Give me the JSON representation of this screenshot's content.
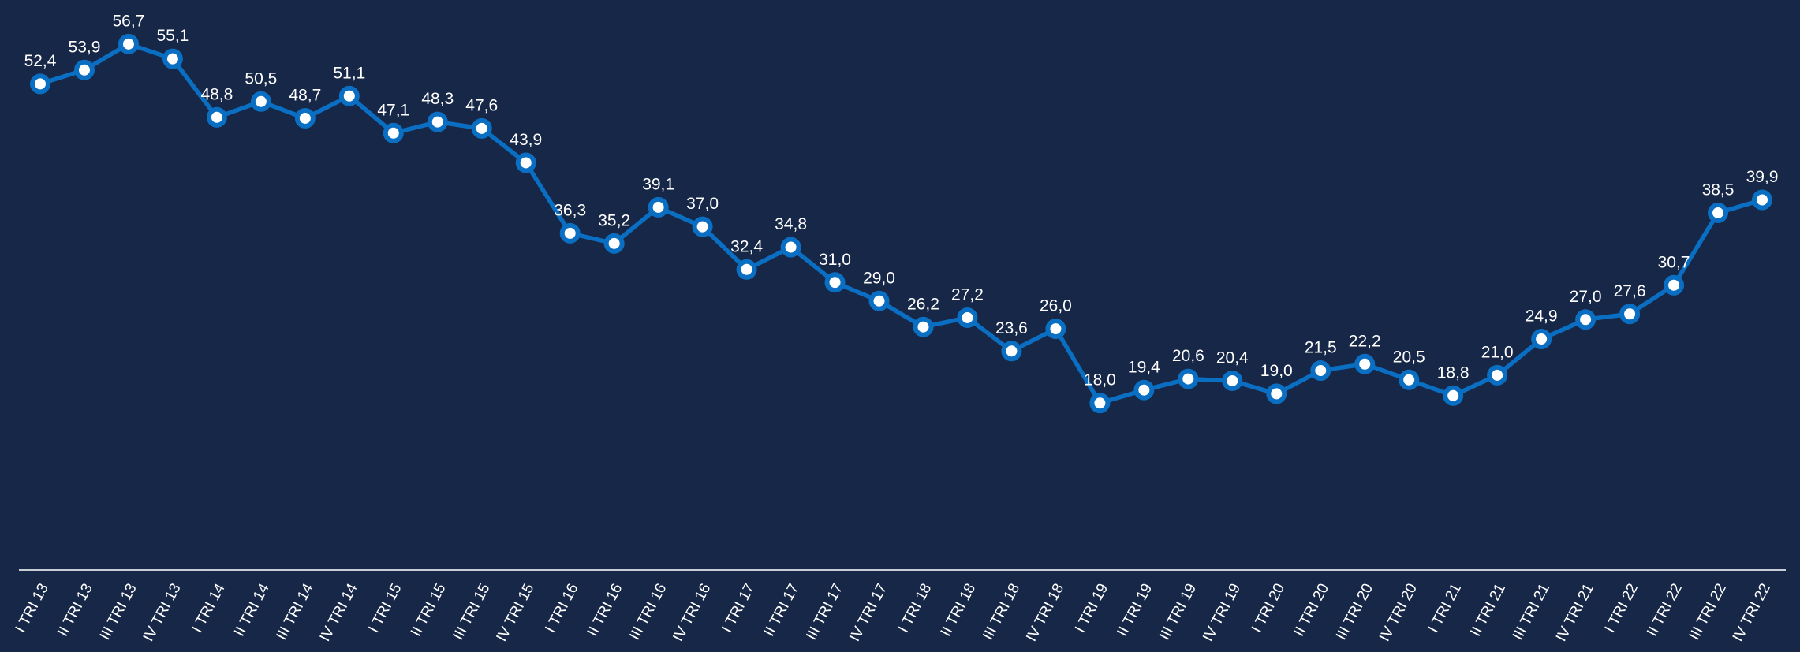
{
  "chart_data": {
    "type": "line",
    "categories": [
      "I TRI 13",
      "II TRI 13",
      "III TRI 13",
      "IV TRI 13",
      "I TRI 14",
      "II TRI 14",
      "III TRI 14",
      "IV TRI 14",
      "I TRI 15",
      "II TRI 15",
      "III TRI 15",
      "IV TRI 15",
      "I TRI 16",
      "II TRI 16",
      "III TRI 16",
      "IV TRI 16",
      "I TRI 17",
      "II TRI 17",
      "III TRI 17",
      "IV TRI 17",
      "I TRI 18",
      "II TRI 18",
      "III TRI 18",
      "IV TRI 18",
      "I TRI 19",
      "II TRI 19",
      "III TRI 19",
      "IV TRI 19",
      "I TRI 20",
      "II TRI 20",
      "III TRI 20",
      "IV TRI 20",
      "I TRI 21",
      "II TRI 21",
      "III TRI 21",
      "IV TRI 21",
      "I TRI 22",
      "II TRI 22",
      "III TRI 22",
      "IV TRI 22"
    ],
    "values": [
      52.4,
      53.9,
      56.7,
      55.1,
      48.8,
      50.5,
      48.7,
      51.1,
      47.1,
      48.3,
      47.6,
      43.9,
      36.3,
      35.2,
      39.1,
      37.0,
      32.4,
      34.8,
      31.0,
      29.0,
      26.2,
      27.2,
      23.6,
      26.0,
      18.0,
      19.4,
      20.6,
      20.4,
      19.0,
      21.5,
      22.2,
      20.5,
      18.8,
      21.0,
      24.9,
      27.0,
      27.6,
      30.7,
      38.5,
      39.9
    ],
    "value_labels": [
      "52,4",
      "53,9",
      "56,7",
      "55,1",
      "48,8",
      "50,5",
      "48,7",
      "51,1",
      "47,1",
      "48,3",
      "47,6",
      "43,9",
      "36,3",
      "35,2",
      "39,1",
      "37,0",
      "32,4",
      "34,8",
      "31,0",
      "29,0",
      "26,2",
      "27,2",
      "23,6",
      "26,0",
      "18,0",
      "19,4",
      "20,6",
      "20,4",
      "19,0",
      "21,5",
      "22,2",
      "20,5",
      "18,8",
      "21,0",
      "24,9",
      "27,0",
      "27,6",
      "30,7",
      "38,5",
      "39,9"
    ],
    "color": "#0a6fc2",
    "marker_fill": "#ffffff",
    "ylim": [
      0,
      60
    ]
  }
}
